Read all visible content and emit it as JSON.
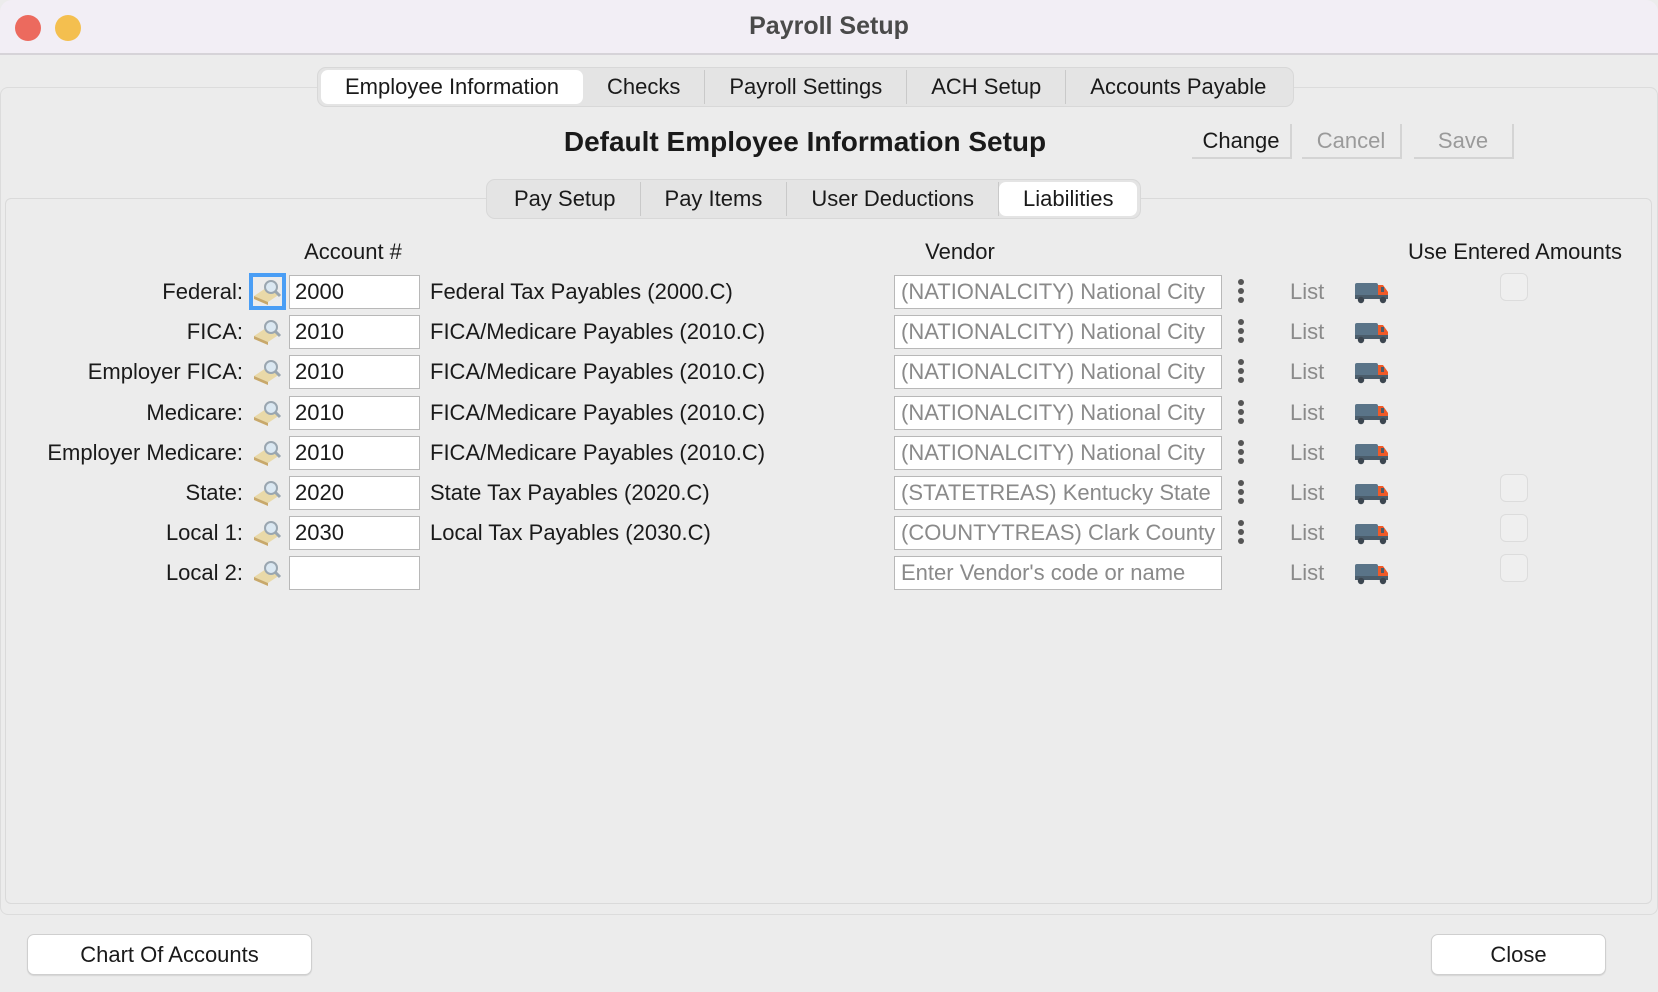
{
  "window": {
    "title": "Payroll Setup"
  },
  "main_tabs": [
    {
      "label": "Employee Information",
      "active": true
    },
    {
      "label": "Checks"
    },
    {
      "label": "Payroll Settings"
    },
    {
      "label": "ACH Setup"
    },
    {
      "label": "Accounts Payable"
    }
  ],
  "heading": "Default Employee Information Setup",
  "toolbar": {
    "change": "Change",
    "cancel": "Cancel",
    "save": "Save"
  },
  "sub_tabs": [
    {
      "label": "Pay Setup"
    },
    {
      "label": "Pay Items"
    },
    {
      "label": "User Deductions"
    },
    {
      "label": "Liabilities",
      "active": true
    }
  ],
  "columns": {
    "account": "Account #",
    "vendor": "Vendor",
    "use_entered": "Use Entered Amounts"
  },
  "rows": [
    {
      "label": "Federal:",
      "account": "2000",
      "description": "Federal Tax Payables (2000.C)",
      "vendor": "(NATIONALCITY) National City",
      "list": "List",
      "checkbox": true,
      "checked": false
    },
    {
      "label": "FICA:",
      "account": "2010",
      "description": "FICA/Medicare Payables (2010.C)",
      "vendor": "(NATIONALCITY) National City",
      "list": "List",
      "checkbox": false
    },
    {
      "label": "Employer FICA:",
      "account": "2010",
      "description": "FICA/Medicare Payables (2010.C)",
      "vendor": "(NATIONALCITY) National City",
      "list": "List",
      "checkbox": false
    },
    {
      "label": "Medicare:",
      "account": "2010",
      "description": "FICA/Medicare Payables (2010.C)",
      "vendor": "(NATIONALCITY) National City",
      "list": "List",
      "checkbox": false
    },
    {
      "label": "Employer Medicare:",
      "account": "2010",
      "description": "FICA/Medicare Payables (2010.C)",
      "vendor": "(NATIONALCITY) National City",
      "list": "List",
      "checkbox": false
    },
    {
      "label": "State:",
      "account": "2020",
      "description": "State Tax Payables (2020.C)",
      "vendor": "(STATETREAS) Kentucky State",
      "list": "List",
      "checkbox": true,
      "checked": false
    },
    {
      "label": "Local 1:",
      "account": "2030",
      "description": "Local Tax Payables (2030.C)",
      "vendor": "(COUNTYTREAS) Clark County",
      "list": "List",
      "checkbox": true,
      "checked": false
    },
    {
      "label": "Local 2:",
      "account": "",
      "description": "",
      "vendor": "",
      "vendor_placeholder": "Enter Vendor's code or name",
      "list": "List",
      "checkbox": true,
      "checked": false
    }
  ],
  "footer": {
    "chart_of_accounts": "Chart Of Accounts",
    "close": "Close"
  },
  "colors": {
    "close_light": "#ec6a5e",
    "minimize_light": "#f4bf4f",
    "focus_ring": "#4a9ef5",
    "truck_body": "#5a7488",
    "truck_cab": "#f05a28"
  }
}
